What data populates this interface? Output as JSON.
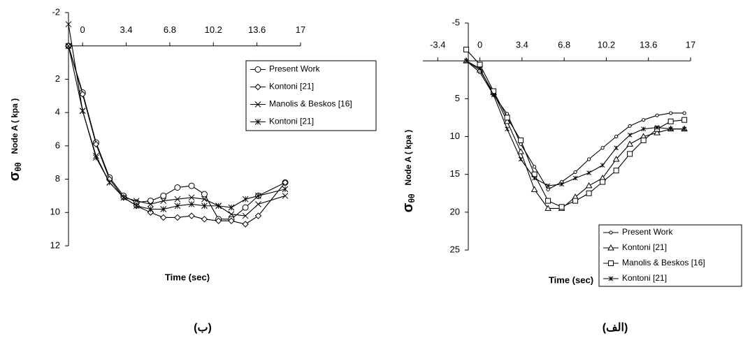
{
  "chart_data": [
    {
      "type": "line",
      "caption": "(ب)",
      "x_label": "Time (sec)",
      "y_label_symbol": "σ",
      "y_label_subscript": "θθ",
      "y_label": "Node A ( kpa )",
      "x": [
        -1.1,
        0,
        1.05,
        2.1,
        3.2,
        4.2,
        5.3,
        6.3,
        7.4,
        8.5,
        9.5,
        10.6,
        11.6,
        12.7,
        13.7,
        15.8
      ],
      "xlim": [
        -1.1,
        17
      ],
      "xticks": [
        0,
        3.4,
        6.8,
        10.2,
        13.6,
        17
      ],
      "ylim": [
        -2,
        12
      ],
      "yticks": [
        -2,
        2,
        4,
        6,
        8,
        10,
        12
      ],
      "y_inverted": true,
      "legend": "upper right",
      "series": [
        {
          "name": "Present Work",
          "color": "#000000",
          "marker": "circle",
          "values": [
            0,
            2.8,
            5.8,
            7.9,
            9.0,
            9.4,
            9.3,
            9.0,
            8.5,
            8.4,
            8.9,
            10.4,
            10.4,
            9.7,
            9.0,
            8.2
          ]
        },
        {
          "name": "Kontoni [21]",
          "color": "#000000",
          "marker": "diamond",
          "values": [
            0,
            2.9,
            5.9,
            8.0,
            9.1,
            9.6,
            10.0,
            10.3,
            10.3,
            10.2,
            10.4,
            10.5,
            10.5,
            10.7,
            10.2,
            8.2
          ]
        },
        {
          "name": "Manolis & Beskos [16]",
          "color": "#000000",
          "marker": "x",
          "values": [
            0,
            3.9,
            6.6,
            8.2,
            9.1,
            9.3,
            9.5,
            9.3,
            9.2,
            9.1,
            9.2,
            9.6,
            10.1,
            10.2,
            9.5,
            9.0
          ]
        },
        {
          "name": "Kontoni [21]",
          "color": "#000000",
          "marker": "asterisk",
          "values": [
            -1.3,
            3.9,
            6.7,
            8.2,
            9.1,
            9.6,
            9.8,
            9.8,
            9.6,
            9.5,
            9.6,
            9.6,
            9.7,
            9.2,
            9.0,
            8.6
          ]
        }
      ]
    },
    {
      "type": "line",
      "caption": "(الف)",
      "x_label": "Time (sec)",
      "y_label_symbol": "σ",
      "y_label_subscript": "θθ",
      "y_label": "Node A ( kpa )",
      "x": [
        -1.1,
        0,
        1.1,
        2.2,
        3.3,
        4.4,
        5.5,
        6.6,
        7.7,
        8.8,
        9.9,
        11,
        12.1,
        13.2,
        14.3,
        15.4,
        16.5
      ],
      "xlim": [
        -4.6,
        17
      ],
      "xticks": [
        -3.4,
        0,
        3.4,
        6.8,
        10.2,
        13.6,
        17
      ],
      "ylim": [
        -5,
        25
      ],
      "yticks": [
        -5,
        5,
        10,
        15,
        20,
        25
      ],
      "y_inverted": true,
      "legend": "lower right",
      "series": [
        {
          "name": "Present Work",
          "color": "#000000",
          "marker": "dot",
          "values": [
            0,
            1.5,
            4.5,
            7,
            11,
            14,
            17,
            16,
            14.7,
            13,
            11.5,
            10,
            8.6,
            7.8,
            7.2,
            6.9,
            6.9
          ]
        },
        {
          "name": "Kontoni [21]",
          "color": "#000000",
          "marker": "triangle",
          "values": [
            0,
            1.2,
            4.2,
            8,
            12,
            17,
            19.5,
            19.5,
            18,
            16.5,
            15.5,
            13,
            11,
            10,
            9.5,
            9,
            9
          ]
        },
        {
          "name": "Manolis & Beskos [16]",
          "color": "#000000",
          "marker": "square",
          "values": [
            -1.5,
            0.5,
            4,
            7.5,
            10.5,
            15,
            18.5,
            19.3,
            18.5,
            17.5,
            16,
            14.5,
            12.3,
            10.5,
            9,
            8,
            7.8
          ]
        },
        {
          "name": "Kontoni [21]",
          "color": "#000000",
          "marker": "asterisk",
          "values": [
            0,
            1,
            4.5,
            9,
            13,
            15.5,
            16.5,
            16.3,
            15.5,
            14.8,
            13.8,
            11.5,
            9.8,
            9,
            8.8,
            9,
            9
          ]
        }
      ]
    }
  ]
}
